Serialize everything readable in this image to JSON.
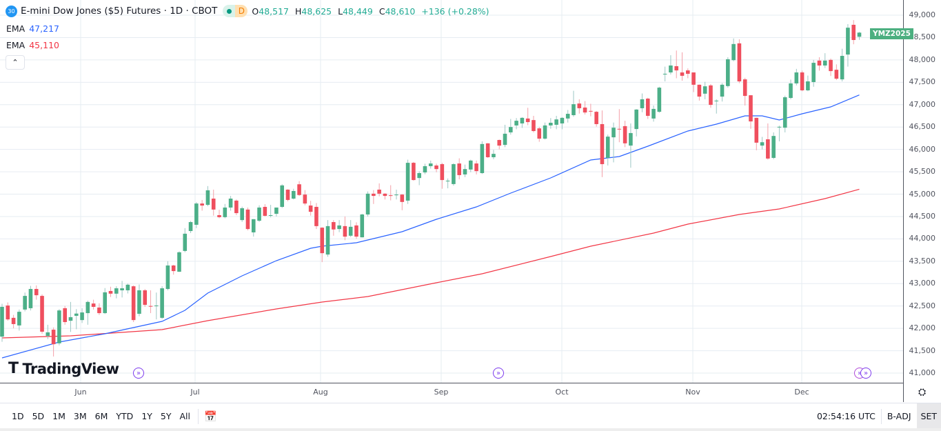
{
  "header": {
    "symbol_badge": "30",
    "title": "E-mini Dow Jones ($5) Futures · 1D · CBOT",
    "status_letter": "D",
    "legend": {
      "open_label": "O",
      "open": "48,517",
      "high_label": "H",
      "high": "48,625",
      "low_label": "L",
      "low": "48,449",
      "close_label": "C",
      "close": "48,610",
      "change": "+136 (+0.28%)"
    }
  },
  "indicators": [
    {
      "label": "EMA",
      "value": "47,217",
      "color": "#2962ff"
    },
    {
      "label": "EMA",
      "value": "45,110",
      "color": "#f23645"
    }
  ],
  "collapse_icon": "chevron-up-icon",
  "logo": "TradingView",
  "symbol_tag": "YMZ2025",
  "colors": {
    "up": "#4caf88",
    "down": "#ef4f5e",
    "ema_fast": "#2962ff",
    "ema_slow": "#f23645",
    "event": "#7c3aed",
    "tag": "#4caf80"
  },
  "price_axis": [
    "49,000",
    "48,500",
    "48,000",
    "47,500",
    "47,000",
    "46,500",
    "46,000",
    "45,500",
    "45,000",
    "44,500",
    "44,000",
    "43,500",
    "43,000",
    "42,500",
    "42,000",
    "41,500",
    "41,000"
  ],
  "time_axis": [
    "Jun",
    "Jul",
    "Aug",
    "Sep",
    "Oct",
    "Nov",
    "Dec"
  ],
  "toolbar": {
    "ranges": [
      "1D",
      "5D",
      "1M",
      "3M",
      "6M",
      "YTD",
      "1Y",
      "5Y",
      "All"
    ],
    "calendar_icon": "calendar-goto-icon",
    "clock": "02:54:16 UTC",
    "badj": "B-ADJ",
    "set": "SET",
    "settings_icon": "gear-icon"
  },
  "chart_data": {
    "type": "candlestick",
    "ylim": [
      40900,
      49150
    ],
    "grid": true,
    "y_ticks": [
      41000,
      41500,
      42000,
      42500,
      43000,
      43500,
      44000,
      44500,
      45000,
      45500,
      46000,
      46500,
      47000,
      47500,
      48000,
      48500,
      49000
    ],
    "ohlc": [
      [
        41815,
        42550,
        41700,
        42480
      ],
      [
        42510,
        42580,
        42170,
        42200
      ],
      [
        42235,
        42300,
        42000,
        42095
      ],
      [
        42065,
        42420,
        41950,
        42370
      ],
      [
        42420,
        42800,
        42380,
        42725
      ],
      [
        42450,
        42950,
        42400,
        42880
      ],
      [
        42880,
        42960,
        42640,
        42740
      ],
      [
        42725,
        42760,
        41880,
        41925
      ],
      [
        41830,
        42080,
        41760,
        41910
      ],
      [
        41970,
        42020,
        41370,
        41645
      ],
      [
        41665,
        42430,
        41620,
        42400
      ],
      [
        42450,
        42500,
        42080,
        42140
      ],
      [
        42170,
        42590,
        41920,
        42250
      ],
      [
        42280,
        42430,
        41980,
        42330
      ],
      [
        42185,
        42450,
        42120,
        42355
      ],
      [
        42340,
        42620,
        42080,
        42590
      ],
      [
        42555,
        42640,
        42420,
        42480
      ],
      [
        42465,
        42560,
        42300,
        42340
      ],
      [
        42340,
        42900,
        42320,
        42805
      ],
      [
        42835,
        42930,
        42700,
        42775
      ],
      [
        42775,
        42940,
        42670,
        42895
      ],
      [
        42850,
        43060,
        42690,
        42895
      ],
      [
        42850,
        43000,
        42780,
        42975
      ],
      [
        42940,
        42960,
        42140,
        42185
      ],
      [
        42325,
        42980,
        42270,
        42850
      ],
      [
        42850,
        42880,
        42480,
        42525
      ],
      [
        42500,
        42850,
        42340,
        42495
      ],
      [
        42510,
        42800,
        42200,
        42510
      ],
      [
        42235,
        42940,
        42210,
        42895
      ],
      [
        42880,
        43500,
        42850,
        43405
      ],
      [
        43405,
        43420,
        43200,
        43280
      ],
      [
        43265,
        43720,
        43260,
        43700
      ],
      [
        43730,
        44240,
        43700,
        44115
      ],
      [
        44175,
        44400,
        44130,
        44375
      ],
      [
        44315,
        44820,
        44240,
        44790
      ],
      [
        44790,
        44870,
        44630,
        44745
      ],
      [
        44760,
        45180,
        44730,
        45085
      ],
      [
        44900,
        45100,
        44520,
        44655
      ],
      [
        44530,
        44650,
        44460,
        44485
      ],
      [
        44485,
        44780,
        44460,
        44700
      ],
      [
        44700,
        44960,
        44630,
        44900
      ],
      [
        44855,
        44880,
        44530,
        44575
      ],
      [
        44420,
        44720,
        44380,
        44685
      ],
      [
        44655,
        44700,
        44190,
        44220
      ],
      [
        44145,
        44440,
        44050,
        44440
      ],
      [
        44405,
        44750,
        44380,
        44700
      ],
      [
        44715,
        44775,
        44500,
        44515
      ],
      [
        44530,
        44760,
        44480,
        44530
      ],
      [
        44560,
        44700,
        44500,
        44700
      ],
      [
        44715,
        45220,
        44690,
        45195
      ],
      [
        45100,
        45110,
        44840,
        44870
      ],
      [
        44900,
        45120,
        44880,
        45070
      ],
      [
        45220,
        45290,
        44960,
        44980
      ],
      [
        44990,
        45090,
        44750,
        44790
      ],
      [
        44745,
        44850,
        44520,
        44605
      ],
      [
        44715,
        44800,
        44220,
        44285
      ],
      [
        44250,
        44260,
        43480,
        43680
      ],
      [
        43650,
        44420,
        43600,
        44285
      ],
      [
        44375,
        44420,
        44070,
        44210
      ],
      [
        44220,
        44420,
        44150,
        44300
      ],
      [
        44285,
        44500,
        43970,
        44050
      ],
      [
        44070,
        44420,
        44040,
        44270
      ],
      [
        44300,
        44370,
        44000,
        44050
      ],
      [
        44035,
        44560,
        44030,
        44545
      ],
      [
        44545,
        45060,
        44500,
        45010
      ],
      [
        45010,
        45090,
        44780,
        44960
      ],
      [
        45100,
        45240,
        44950,
        45010
      ],
      [
        45010,
        45020,
        44880,
        44960
      ],
      [
        44975,
        45200,
        44860,
        44970
      ],
      [
        44990,
        45100,
        44880,
        44990
      ],
      [
        44990,
        45000,
        44640,
        44825
      ],
      [
        44855,
        45770,
        44780,
        45700
      ],
      [
        45700,
        45720,
        45300,
        45315
      ],
      [
        45360,
        45510,
        45200,
        45470
      ],
      [
        45485,
        45680,
        45445,
        45625
      ],
      [
        45625,
        45750,
        45570,
        45685
      ],
      [
        45640,
        45680,
        45490,
        45560
      ],
      [
        45670,
        45700,
        45120,
        45315
      ],
      [
        45300,
        45350,
        45130,
        45300
      ],
      [
        45225,
        45690,
        45190,
        45670
      ],
      [
        45685,
        45800,
        45330,
        45425
      ],
      [
        45440,
        45660,
        45380,
        45560
      ],
      [
        45550,
        45770,
        45490,
        45750
      ],
      [
        45685,
        45750,
        45440,
        45515
      ],
      [
        45470,
        46180,
        45450,
        46120
      ],
      [
        46135,
        46140,
        45810,
        45825
      ],
      [
        45825,
        45990,
        45780,
        45900
      ],
      [
        46210,
        46220,
        46000,
        46085
      ],
      [
        46100,
        46550,
        46050,
        46350
      ],
      [
        46380,
        46680,
        46330,
        46500
      ],
      [
        46535,
        46700,
        46450,
        46640
      ],
      [
        46580,
        46720,
        46480,
        46705
      ],
      [
        46690,
        46930,
        46540,
        46610
      ],
      [
        46655,
        46750,
        46380,
        46410
      ],
      [
        46470,
        46500,
        46170,
        46240
      ],
      [
        46240,
        46600,
        46220,
        46535
      ],
      [
        46535,
        46700,
        46460,
        46595
      ],
      [
        46550,
        46750,
        46450,
        46670
      ],
      [
        46580,
        46720,
        46450,
        46705
      ],
      [
        46690,
        46880,
        46600,
        46795
      ],
      [
        46765,
        47310,
        46730,
        47010
      ],
      [
        47025,
        47120,
        46800,
        46920
      ],
      [
        46935,
        47080,
        46780,
        46825
      ],
      [
        46860,
        47020,
        46740,
        46855
      ],
      [
        46840,
        46860,
        46510,
        46565
      ],
      [
        46565,
        46870,
        45380,
        45670
      ],
      [
        45810,
        46330,
        45640,
        46285
      ],
      [
        46270,
        46600,
        45710,
        46485
      ],
      [
        46460,
        46900,
        46160,
        46455
      ],
      [
        46520,
        46640,
        46050,
        46135
      ],
      [
        46085,
        46580,
        45590,
        46365
      ],
      [
        46455,
        46900,
        46290,
        46890
      ],
      [
        46920,
        47250,
        46830,
        47120
      ],
      [
        47135,
        47155,
        46680,
        46750
      ],
      [
        46690,
        46980,
        46620,
        46905
      ],
      [
        46840,
        47400,
        46820,
        47380
      ],
      [
        47690,
        47850,
        47520,
        47690
      ],
      [
        47720,
        48105,
        47675,
        47875
      ],
      [
        47860,
        48210,
        47590,
        47765
      ],
      [
        47720,
        48170,
        47535,
        47645
      ],
      [
        47765,
        47810,
        47590,
        47690
      ],
      [
        47720,
        47720,
        47280,
        47445
      ],
      [
        47445,
        47450,
        47090,
        47180
      ],
      [
        47245,
        47510,
        47120,
        47410
      ],
      [
        47430,
        47460,
        46930,
        46995
      ],
      [
        47090,
        47120,
        46800,
        47090
      ],
      [
        47180,
        47480,
        47070,
        47445
      ],
      [
        47415,
        48060,
        47380,
        48015
      ],
      [
        47995,
        48480,
        47970,
        48355
      ],
      [
        48370,
        48460,
        47480,
        47520
      ],
      [
        47565,
        47600,
        46980,
        47195
      ],
      [
        47210,
        47210,
        46460,
        46625
      ],
      [
        46705,
        46710,
        45980,
        46150
      ],
      [
        46085,
        46280,
        46000,
        46160
      ],
      [
        46225,
        46580,
        45770,
        45795
      ],
      [
        45810,
        46380,
        45780,
        46300
      ],
      [
        46505,
        46530,
        46180,
        46505
      ],
      [
        46485,
        47200,
        46380,
        47165
      ],
      [
        47150,
        47560,
        47120,
        47475
      ],
      [
        47475,
        47800,
        47430,
        47720
      ],
      [
        47720,
        47760,
        47300,
        47320
      ],
      [
        47320,
        47650,
        47300,
        47520
      ],
      [
        47505,
        48000,
        47400,
        47935
      ],
      [
        47985,
        48060,
        47760,
        47875
      ],
      [
        47875,
        48150,
        47820,
        47985
      ],
      [
        48000,
        48030,
        47640,
        47750
      ],
      [
        47780,
        47900,
        47550,
        47580
      ],
      [
        47565,
        48250,
        47520,
        48090
      ],
      [
        48120,
        48800,
        47850,
        48720
      ],
      [
        48785,
        48890,
        48350,
        48445
      ],
      [
        48517,
        48625,
        48449,
        48610
      ]
    ],
    "ema_fast": [
      [
        0,
        41339
      ],
      [
        10,
        41694
      ],
      [
        18,
        41879
      ],
      [
        28,
        42156
      ],
      [
        32,
        42403
      ],
      [
        36,
        42788
      ],
      [
        42,
        43173
      ],
      [
        48,
        43512
      ],
      [
        54,
        43790
      ],
      [
        56,
        43836
      ],
      [
        62,
        43913
      ],
      [
        70,
        44160
      ],
      [
        76,
        44437
      ],
      [
        83,
        44715
      ],
      [
        89,
        45023
      ],
      [
        96,
        45362
      ],
      [
        103,
        45763
      ],
      [
        108,
        45840
      ],
      [
        113,
        46071
      ],
      [
        120,
        46410
      ],
      [
        125,
        46564
      ],
      [
        130,
        46749
      ],
      [
        133,
        46749
      ],
      [
        136,
        46657
      ],
      [
        140,
        46796
      ],
      [
        145,
        46950
      ],
      [
        150,
        47217
      ]
    ],
    "ema_slow": [
      [
        0,
        41786
      ],
      [
        12,
        41832
      ],
      [
        28,
        41971
      ],
      [
        36,
        42171
      ],
      [
        48,
        42433
      ],
      [
        56,
        42588
      ],
      [
        64,
        42711
      ],
      [
        76,
        43019
      ],
      [
        84,
        43220
      ],
      [
        96,
        43605
      ],
      [
        103,
        43836
      ],
      [
        114,
        44129
      ],
      [
        120,
        44329
      ],
      [
        129,
        44545
      ],
      [
        136,
        44669
      ],
      [
        144,
        44900
      ],
      [
        150,
        45110
      ]
    ],
    "month_labels": [
      "Jun",
      "Jul",
      "Aug",
      "Sep",
      "Oct",
      "Nov",
      "Dec"
    ],
    "event_markers": 4
  }
}
